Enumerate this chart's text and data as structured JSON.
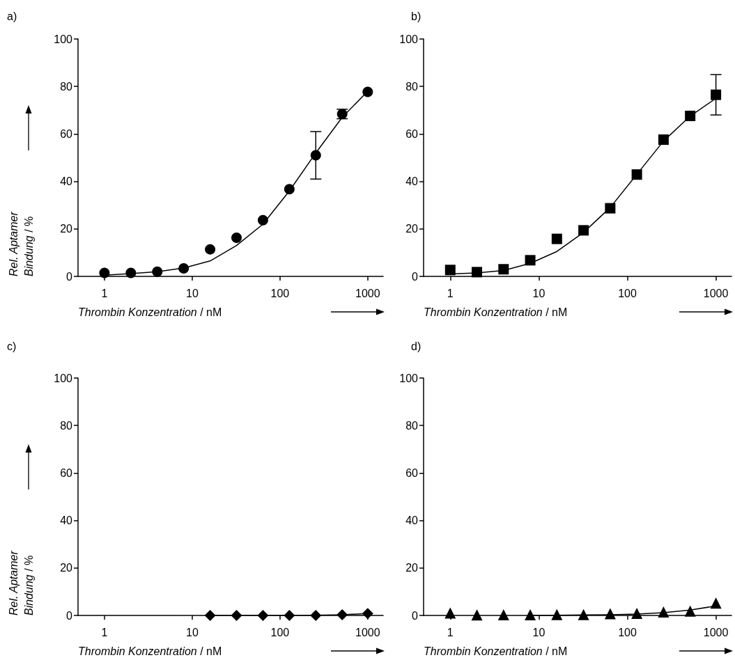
{
  "chart_data": [
    {
      "type": "scatter",
      "title": "a)",
      "xlabel": "Thrombin Konzentration / nM",
      "ylabel": "Rel. Aptamer\nBindung / %",
      "log": "x",
      "xlim": [
        0.5,
        1500
      ],
      "xticks": [
        1,
        10,
        100,
        1000
      ],
      "ylim": [
        0,
        100
      ],
      "yticks": [
        0,
        20,
        40,
        60,
        80,
        100
      ],
      "series": [
        {
          "type": "scatter",
          "marker": "circle",
          "color": "#000000",
          "x": [
            1,
            2,
            4,
            8,
            16,
            32,
            64,
            128,
            256,
            512,
            1000
          ],
          "values": [
            1.5,
            1.5,
            2,
            3.4,
            11.4,
            16.3,
            23.7,
            36.7,
            51,
            68.4,
            77.7
          ],
          "errors": [
            null,
            null,
            null,
            null,
            null,
            null,
            null,
            null,
            10,
            2,
            null
          ]
        },
        {
          "type": "line",
          "marker": "none",
          "color": "#000000",
          "x": [
            1,
            2,
            4,
            8,
            16,
            32,
            64,
            128,
            256,
            512,
            1000
          ],
          "values": [
            0.5,
            1.2,
            2,
            3.5,
            6.5,
            13,
            22,
            36,
            52,
            67,
            78
          ]
        }
      ]
    },
    {
      "type": "scatter",
      "title": "b)",
      "xlabel": "Thrombin Konzentration / nM",
      "log": "x",
      "xlim": [
        0.5,
        1500
      ],
      "xticks": [
        1,
        10,
        100,
        1000
      ],
      "ylim": [
        0,
        100
      ],
      "yticks": [
        0,
        20,
        40,
        60,
        80,
        100
      ],
      "series": [
        {
          "type": "scatter",
          "marker": "square",
          "color": "#000000",
          "x": [
            1,
            2,
            4,
            8,
            16,
            32,
            64,
            128,
            256,
            512,
            1000
          ],
          "values": [
            2.7,
            1.8,
            3,
            6.8,
            15.8,
            19.4,
            28.7,
            42.9,
            57.6,
            67.6,
            76.5
          ],
          "errors": [
            null,
            null,
            null,
            null,
            null,
            null,
            null,
            null,
            null,
            null,
            8.5
          ]
        },
        {
          "type": "line",
          "marker": "none",
          "color": "#000000",
          "x": [
            1,
            2,
            4,
            8,
            16,
            32,
            64,
            128,
            256,
            512,
            1000
          ],
          "values": [
            1,
            1.5,
            2.5,
            5.5,
            10.5,
            18.5,
            29,
            43,
            57,
            67.5,
            75
          ]
        }
      ]
    },
    {
      "type": "scatter",
      "title": "c)",
      "xlabel": "Thrombin Konzentration / nM",
      "ylabel": "Rel. Aptamer\nBindung / %",
      "log": "x",
      "xlim": [
        0.5,
        1500
      ],
      "xticks": [
        1,
        10,
        100,
        1000
      ],
      "ylim": [
        0,
        100
      ],
      "yticks": [
        0,
        20,
        40,
        60,
        80,
        100
      ],
      "series": [
        {
          "type": "scatter",
          "marker": "diamond",
          "color": "#000000",
          "x": [
            16,
            32,
            64,
            128,
            256,
            512,
            1000
          ],
          "values": [
            0,
            0,
            0,
            0,
            0,
            0.3,
            0.8
          ]
        },
        {
          "type": "line",
          "marker": "none",
          "color": "#000000",
          "x": [
            16,
            32,
            64,
            128,
            256,
            512,
            1000
          ],
          "values": [
            0,
            0,
            0,
            0,
            0.1,
            0.3,
            0.8
          ]
        }
      ]
    },
    {
      "type": "scatter",
      "title": "d)",
      "xlabel": "Thrombin Konzentration / nM",
      "log": "x",
      "xlim": [
        0.5,
        1500
      ],
      "xticks": [
        1,
        10,
        100,
        1000
      ],
      "ylim": [
        0,
        100
      ],
      "yticks": [
        0,
        20,
        40,
        60,
        80,
        100
      ],
      "series": [
        {
          "type": "scatter",
          "marker": "triangle",
          "color": "#000000",
          "x": [
            1,
            2,
            4,
            8,
            16,
            32,
            64,
            128,
            256,
            512,
            1000
          ],
          "values": [
            1,
            0.2,
            0.3,
            0.3,
            0.4,
            0.4,
            0.7,
            0.9,
            1.5,
            1.8,
            5.2
          ]
        },
        {
          "type": "line",
          "marker": "none",
          "color": "#000000",
          "x": [
            8,
            16,
            32,
            64,
            128,
            256,
            512,
            1000
          ],
          "values": [
            0,
            0.1,
            0.2,
            0.3,
            0.6,
            1.2,
            2.3,
            4
          ]
        }
      ]
    }
  ]
}
